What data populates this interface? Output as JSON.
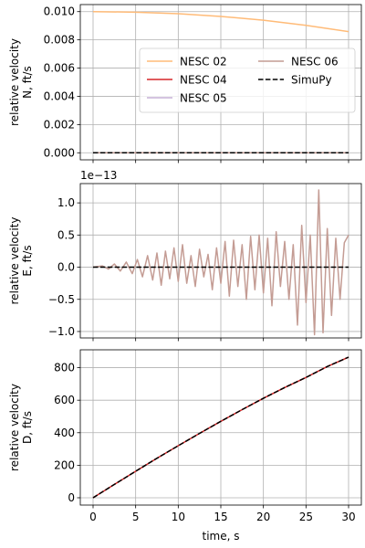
{
  "chart_data": [
    {
      "type": "line",
      "ylabel": [
        "relative velocity",
        "N, ft/s"
      ],
      "xlim": [
        -1.5,
        31.5
      ],
      "ylim": [
        -0.0005,
        0.0105
      ],
      "yticks": [
        0.0,
        0.002,
        0.004,
        0.006,
        0.008,
        0.01
      ],
      "ytick_labels": [
        "0.000",
        "0.002",
        "0.004",
        "0.006",
        "0.008",
        "0.010"
      ],
      "grid": true,
      "legend": {
        "placement": "center-right",
        "columns": 2,
        "entries": [
          {
            "label": "NESC 02",
            "color": "#ffbb78",
            "style": "solid"
          },
          {
            "label": "NESC 04",
            "color": "#d62728",
            "style": "solid"
          },
          {
            "label": "NESC 05",
            "color": "#c5b0d5",
            "style": "solid"
          },
          {
            "label": "NESC 06",
            "color": "#c49c94",
            "style": "solid"
          },
          {
            "label": "SimuPy",
            "color": "#000000",
            "style": "dashed"
          }
        ]
      },
      "series": [
        {
          "name": "NESC 02",
          "color": "#ffbb78",
          "x": [
            0,
            5,
            10,
            15,
            20,
            25,
            30
          ],
          "y": [
            0.01,
            0.00996,
            0.00985,
            0.00966,
            0.00939,
            0.00903,
            0.00858
          ]
        },
        {
          "name": "NESC 04",
          "color": "#d62728",
          "x": [
            0,
            30
          ],
          "y": [
            0.0,
            0.0
          ]
        },
        {
          "name": "NESC 05",
          "color": "#c5b0d5",
          "x": [
            0,
            30
          ],
          "y": [
            0.0,
            0.0
          ]
        },
        {
          "name": "NESC 06",
          "color": "#c49c94",
          "x": [
            0,
            30
          ],
          "y": [
            0.0,
            0.0
          ]
        },
        {
          "name": "SimuPy",
          "color": "#000000",
          "dash": true,
          "x": [
            0,
            30
          ],
          "y": [
            0.0,
            0.0
          ]
        }
      ]
    },
    {
      "type": "line",
      "ylabel": [
        "relative velocity",
        "E, ft/s"
      ],
      "offset_label": "1e−13",
      "xlim": [
        -1.5,
        31.5
      ],
      "ylim": [
        -1.1,
        1.3
      ],
      "yticks": [
        -1.0,
        -0.5,
        0.0,
        0.5,
        1.0
      ],
      "ytick_labels": [
        "−1.0",
        "−0.5",
        "0.0",
        "0.5",
        "1.0"
      ],
      "grid": true,
      "series": [
        {
          "name": "NESC 06",
          "color": "#c49c94",
          "x": [
            0,
            1.1,
            1.8,
            2.5,
            3.2,
            3.9,
            4.6,
            5.2,
            5.8,
            6.4,
            7.0,
            7.5,
            8.0,
            8.5,
            9.0,
            9.5,
            10.0,
            10.5,
            11.0,
            11.5,
            12.0,
            12.5,
            13.0,
            13.5,
            14.0,
            14.5,
            15.0,
            15.5,
            16.0,
            16.5,
            17.0,
            17.5,
            18.0,
            18.5,
            19.0,
            19.5,
            20.0,
            20.5,
            21.0,
            21.5,
            22.0,
            22.5,
            23.0,
            23.5,
            24.0,
            24.5,
            25.0,
            25.5,
            26.0,
            26.5,
            27.0,
            27.5,
            28.0,
            28.5,
            29.0,
            29.5,
            30.0
          ],
          "y": [
            0,
            0.02,
            -0.03,
            0.05,
            -0.06,
            0.08,
            -0.1,
            0.12,
            -0.15,
            0.18,
            -0.2,
            0.22,
            -0.28,
            0.25,
            -0.18,
            0.3,
            -0.22,
            0.35,
            -0.25,
            0.18,
            -0.3,
            0.28,
            -0.15,
            0.2,
            -0.35,
            0.3,
            -0.25,
            0.4,
            -0.45,
            0.42,
            -0.3,
            0.35,
            -0.5,
            0.48,
            -0.35,
            0.5,
            -0.4,
            0.45,
            -0.6,
            0.55,
            -0.3,
            0.4,
            -0.5,
            0.35,
            -0.9,
            0.65,
            -0.55,
            0.5,
            -1.05,
            1.2,
            -1.02,
            0.6,
            -0.75,
            0.45,
            -0.5,
            0.38,
            0.5
          ]
        },
        {
          "name": "SimuPy",
          "color": "#000000",
          "dash": true,
          "x": [
            0,
            30
          ],
          "y": [
            0.0,
            0.0
          ]
        }
      ]
    },
    {
      "type": "line",
      "ylabel": [
        "relative velocity",
        "D, ft/s"
      ],
      "xlabel": "time, s",
      "xlim": [
        -1.5,
        31.5
      ],
      "ylim": [
        -45,
        910
      ],
      "yticks": [
        0,
        200,
        400,
        600,
        800
      ],
      "ytick_labels": [
        "0",
        "200",
        "400",
        "600",
        "800"
      ],
      "xticks": [
        0,
        5,
        10,
        15,
        20,
        25,
        30
      ],
      "xtick_labels": [
        "0",
        "5",
        "10",
        "15",
        "20",
        "25",
        "30"
      ],
      "grid": true,
      "series": [
        {
          "name": "NESC 04",
          "color": "#d62728",
          "x": [
            0,
            2.5,
            5,
            7.5,
            10,
            12.5,
            15,
            17.5,
            20,
            22.5,
            25,
            27.5,
            30
          ],
          "y": [
            0,
            82,
            163,
            243,
            320,
            396,
            470,
            542,
            612,
            678,
            740,
            807,
            865
          ]
        },
        {
          "name": "SimuPy",
          "color": "#000000",
          "dash": true,
          "x": [
            0,
            2.5,
            5,
            7.5,
            10,
            12.5,
            15,
            17.5,
            20,
            22.5,
            25,
            27.5,
            30
          ],
          "y": [
            0,
            82,
            163,
            243,
            320,
            396,
            470,
            542,
            612,
            678,
            740,
            807,
            865
          ]
        }
      ]
    }
  ]
}
